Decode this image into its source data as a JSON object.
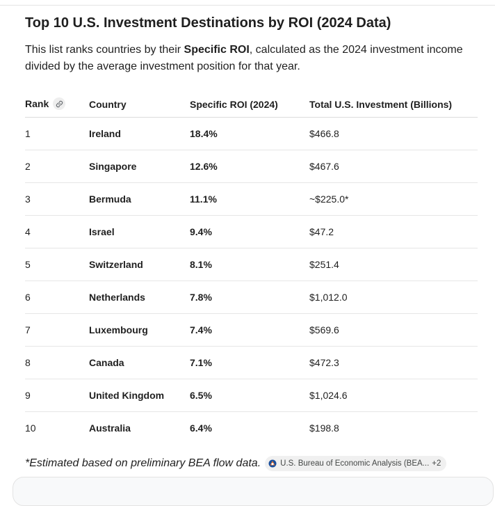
{
  "title": "Top 10 U.S. Investment Destinations by ROI (2024 Data)",
  "intro": {
    "before": "This list ranks countries by their ",
    "bold": "Specific ROI",
    "after": ", calculated as the 2024 investment income divided by the average investment position for that year."
  },
  "table": {
    "headers": {
      "rank": "Rank",
      "country": "Country",
      "roi": "Specific ROI (2024)",
      "total": "Total U.S. Investment (Billions)"
    },
    "rows": [
      {
        "rank": "1",
        "country": "Ireland",
        "roi": "18.4%",
        "total": "$466.8"
      },
      {
        "rank": "2",
        "country": "Singapore",
        "roi": "12.6%",
        "total": "$467.6"
      },
      {
        "rank": "3",
        "country": "Bermuda",
        "roi": "11.1%",
        "total": "~$225.0*"
      },
      {
        "rank": "4",
        "country": "Israel",
        "roi": "9.4%",
        "total": "$47.2"
      },
      {
        "rank": "5",
        "country": "Switzerland",
        "roi": "8.1%",
        "total": "$251.4"
      },
      {
        "rank": "6",
        "country": "Netherlands",
        "roi": "7.8%",
        "total": "$1,012.0"
      },
      {
        "rank": "7",
        "country": "Luxembourg",
        "roi": "7.4%",
        "total": "$569.6"
      },
      {
        "rank": "8",
        "country": "Canada",
        "roi": "7.1%",
        "total": "$472.3"
      },
      {
        "rank": "9",
        "country": "United Kingdom",
        "roi": "6.5%",
        "total": "$1,024.6"
      },
      {
        "rank": "10",
        "country": "Australia",
        "roi": "6.4%",
        "total": "$198.8"
      }
    ]
  },
  "footnote": "*Estimated based on preliminary BEA flow data.",
  "source": {
    "label": "U.S. Bureau of Economic Analysis (BEA...",
    "more": "+2",
    "icon": "source-favicon-icon"
  },
  "colors": {
    "text": "#1f1f1f",
    "divider": "#e6e6e6",
    "chip_bg": "#f0f0f0"
  }
}
